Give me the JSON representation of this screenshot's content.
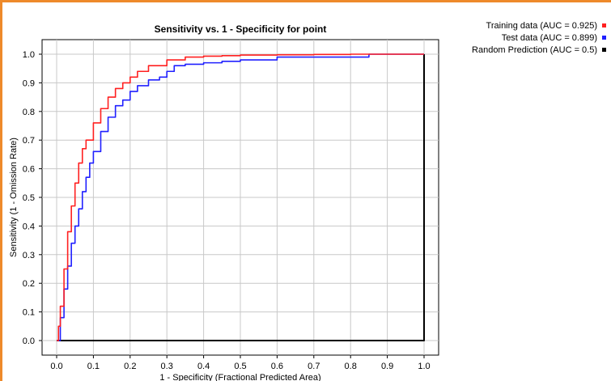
{
  "chart_data": {
    "type": "line",
    "title": "Sensitivity vs. 1 - Specificity for point",
    "xlabel": "1 - Specificity  (Fractional Predicted Area)",
    "ylabel": "Sensitivity  (1 - Omission Rate)",
    "xlim": [
      0.0,
      1.0
    ],
    "ylim": [
      0.0,
      1.0
    ],
    "xticks": [
      "0.0",
      "0.1",
      "0.2",
      "0.3",
      "0.4",
      "0.5",
      "0.6",
      "0.7",
      "0.8",
      "0.9",
      "1.0"
    ],
    "yticks": [
      "0.0",
      "0.1",
      "0.2",
      "0.3",
      "0.4",
      "0.5",
      "0.6",
      "0.7",
      "0.8",
      "0.9",
      "1.0"
    ],
    "grid": true,
    "legend_position": "top-right, outside plot",
    "series": [
      {
        "name": "Training data (AUC = 0.925)",
        "color": "#ff2020",
        "x": [
          0.0,
          0.005,
          0.01,
          0.02,
          0.03,
          0.04,
          0.05,
          0.06,
          0.07,
          0.08,
          0.1,
          0.12,
          0.14,
          0.16,
          0.18,
          0.2,
          0.22,
          0.25,
          0.3,
          0.35,
          0.4,
          0.45,
          0.5,
          0.6,
          0.7,
          0.8,
          0.9,
          1.0
        ],
        "y": [
          0.0,
          0.05,
          0.12,
          0.25,
          0.38,
          0.47,
          0.55,
          0.62,
          0.67,
          0.7,
          0.76,
          0.81,
          0.85,
          0.88,
          0.9,
          0.92,
          0.94,
          0.96,
          0.98,
          0.99,
          0.993,
          0.995,
          0.997,
          0.998,
          0.999,
          1.0,
          1.0,
          1.0
        ]
      },
      {
        "name": "Test data (AUC = 0.899)",
        "color": "#2020ff",
        "x": [
          0.0,
          0.01,
          0.02,
          0.03,
          0.04,
          0.05,
          0.06,
          0.07,
          0.08,
          0.09,
          0.1,
          0.12,
          0.14,
          0.16,
          0.18,
          0.2,
          0.22,
          0.25,
          0.28,
          0.3,
          0.32,
          0.35,
          0.4,
          0.45,
          0.5,
          0.6,
          0.7,
          0.8,
          0.85,
          0.9,
          1.0
        ],
        "y": [
          0.0,
          0.08,
          0.18,
          0.26,
          0.34,
          0.4,
          0.46,
          0.52,
          0.57,
          0.62,
          0.66,
          0.73,
          0.78,
          0.82,
          0.84,
          0.87,
          0.89,
          0.91,
          0.92,
          0.94,
          0.96,
          0.965,
          0.97,
          0.975,
          0.98,
          0.99,
          0.99,
          0.99,
          1.0,
          1.0,
          1.0
        ]
      },
      {
        "name": "Random Prediction (AUC = 0.5)",
        "color": "#000000",
        "x": [
          0.0,
          1.0
        ],
        "y": [
          0.0,
          1.0
        ]
      }
    ]
  }
}
